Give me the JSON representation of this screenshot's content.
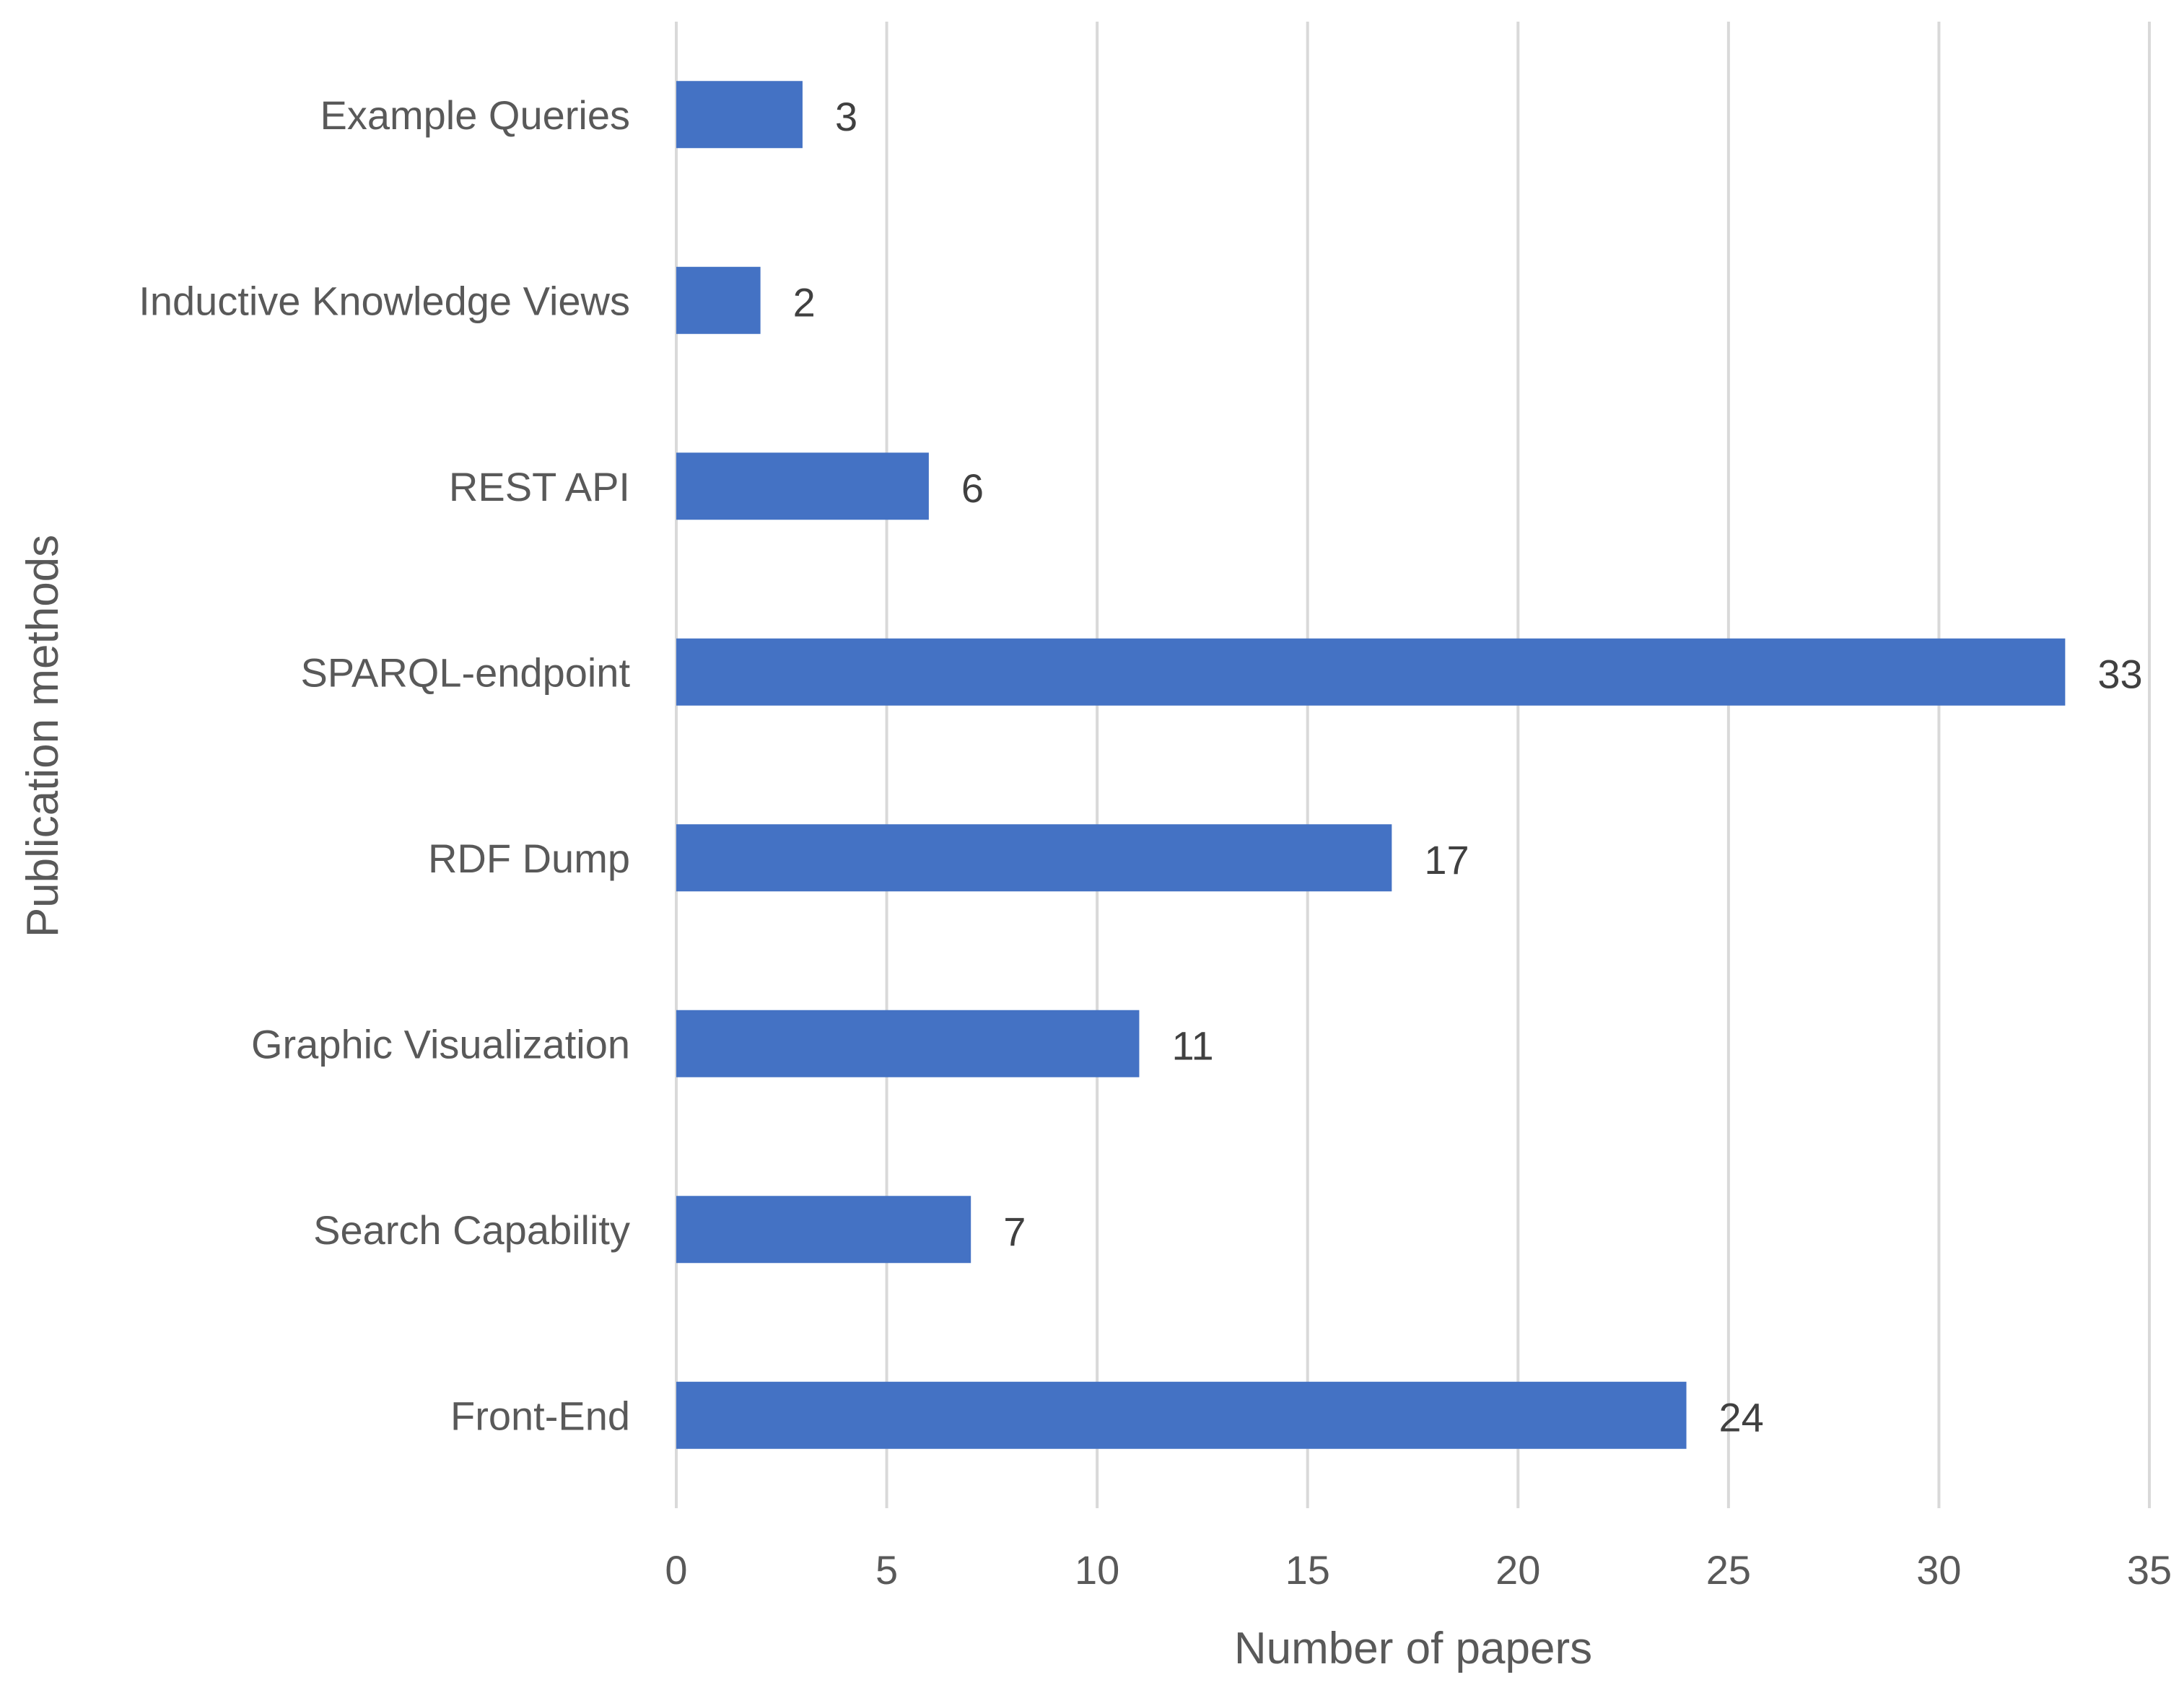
{
  "chart_data": {
    "type": "bar",
    "orientation": "horizontal",
    "title": "",
    "xlabel": "Number of papers",
    "ylabel": "Publication methods",
    "categories": [
      "Example Queries",
      "Inductive Knowledge Views",
      "REST API",
      "SPARQL-endpoint",
      "RDF Dump",
      "Graphic Visualization",
      "Search Capability",
      "Front-End"
    ],
    "values": [
      3,
      2,
      6,
      33,
      17,
      11,
      7,
      24
    ],
    "data_labels": [
      "3",
      "2",
      "6",
      "33",
      "17",
      "11",
      "7",
      "24"
    ],
    "xlim": [
      0,
      35
    ],
    "xticks": [
      0,
      5,
      10,
      15,
      20,
      25,
      30,
      35
    ],
    "xtick_labels": [
      "0",
      "5",
      "10",
      "15",
      "20",
      "25",
      "30",
      "35"
    ],
    "grid": "vertical",
    "legend": "none",
    "bar_color": "#4472c4"
  }
}
